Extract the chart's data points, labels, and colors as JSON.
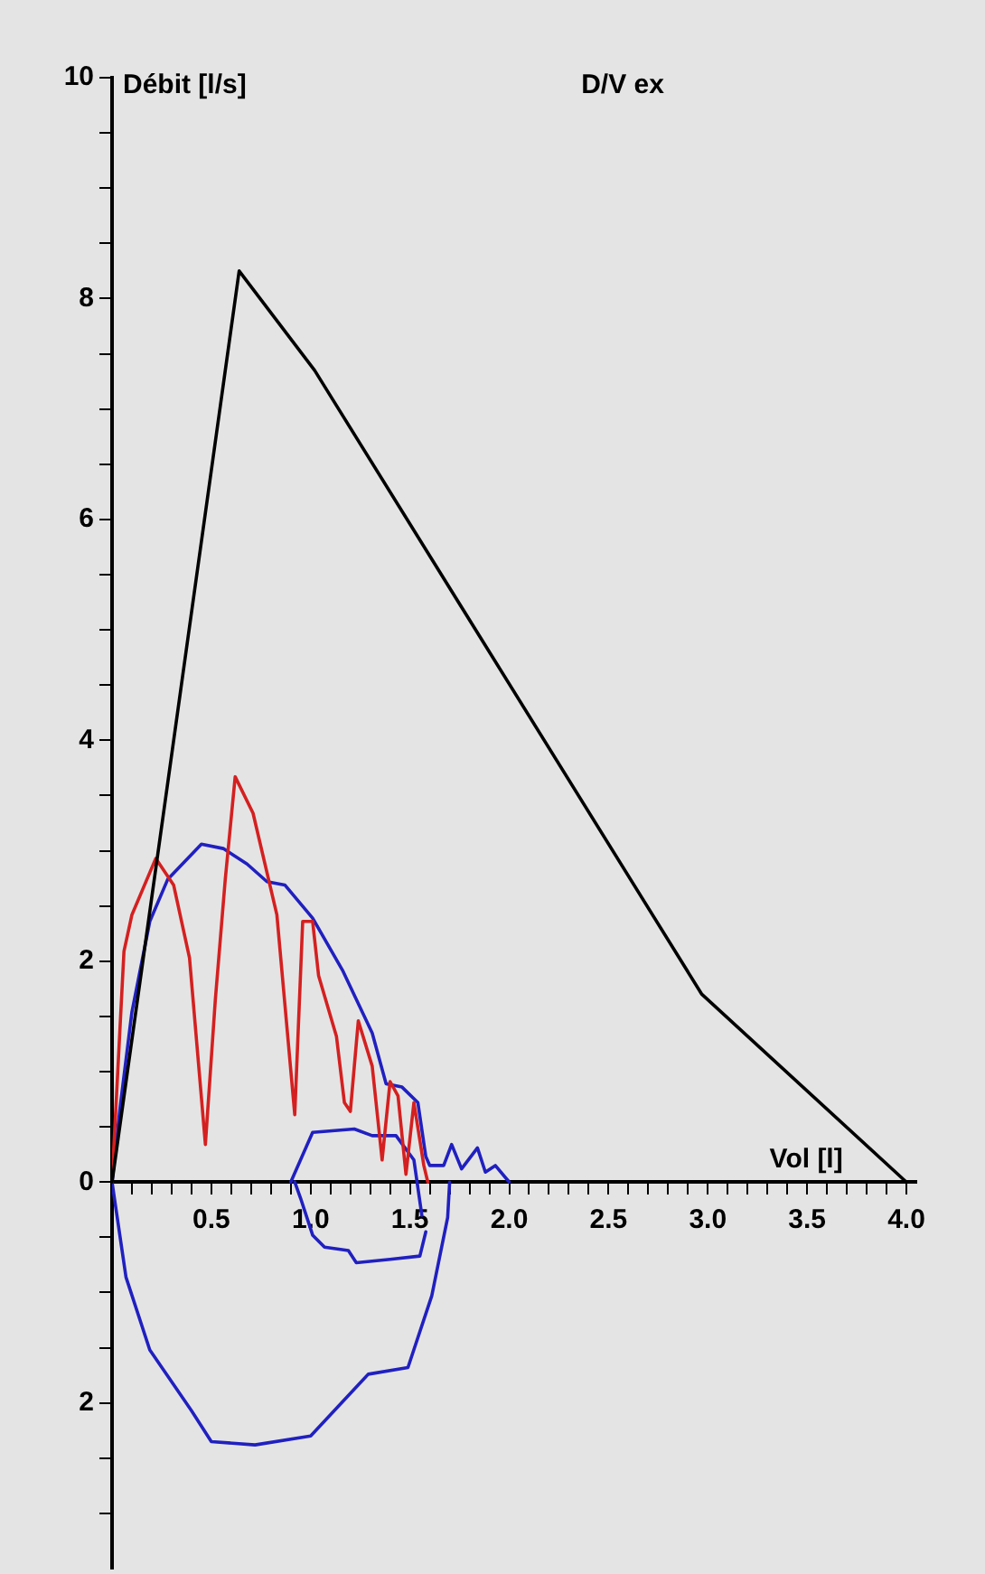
{
  "chart_data": {
    "type": "line",
    "title": "D/V ex",
    "xlabel": "Vol [l]",
    "ylabel": "Débit [l/s]",
    "xlim": [
      0,
      4.05
    ],
    "ylim": [
      -3.5,
      10
    ],
    "xticks": [
      {
        "value": 0.1,
        "label": null
      },
      {
        "value": 0.2,
        "label": null
      },
      {
        "value": 0.3,
        "label": null
      },
      {
        "value": 0.4,
        "label": null
      },
      0.5,
      {
        "value": 0.6,
        "label": null
      },
      {
        "value": 0.7,
        "label": null
      },
      {
        "value": 0.8,
        "label": null
      },
      {
        "value": 0.9,
        "label": null
      },
      {
        "value": 1,
        "label": "1.0"
      },
      {
        "value": 1.1,
        "label": null
      },
      {
        "value": 1.2,
        "label": null
      },
      {
        "value": 1.3,
        "label": null
      },
      {
        "value": 1.4,
        "label": null
      },
      1.5,
      {
        "value": 1.6,
        "label": null
      },
      {
        "value": 1.7,
        "label": null
      },
      {
        "value": 1.8,
        "label": null
      },
      {
        "value": 1.9,
        "label": null
      },
      {
        "value": 2,
        "label": "2.0"
      },
      {
        "value": 2.1,
        "label": null
      },
      {
        "value": 2.2,
        "label": null
      },
      {
        "value": 2.3,
        "label": null
      },
      {
        "value": 2.4,
        "label": null
      },
      2.5,
      {
        "value": 2.6,
        "label": null
      },
      {
        "value": 2.7,
        "label": null
      },
      {
        "value": 2.8,
        "label": null
      },
      {
        "value": 2.9,
        "label": null
      },
      {
        "value": 3,
        "label": "3.0"
      },
      {
        "value": 3.1,
        "label": null
      },
      {
        "value": 3.2,
        "label": null
      },
      {
        "value": 3.3,
        "label": null
      },
      {
        "value": 3.4,
        "label": null
      },
      3.5,
      {
        "value": 3.6,
        "label": null
      },
      {
        "value": 3.7,
        "label": null
      },
      {
        "value": 3.8,
        "label": null
      },
      {
        "value": 3.9,
        "label": null
      },
      {
        "value": 4,
        "label": "4.0"
      }
    ],
    "yticks": [
      {
        "value": -3,
        "label": null
      },
      {
        "value": -2.5,
        "label": null
      },
      {
        "value": -2,
        "label": "2"
      },
      {
        "value": -1.5,
        "label": null
      },
      {
        "value": -1,
        "label": null
      },
      {
        "value": -0.5,
        "label": null
      },
      0,
      {
        "value": 0.5,
        "label": null
      },
      {
        "value": 1,
        "label": null
      },
      {
        "value": 1.5,
        "label": null
      },
      2,
      {
        "value": 2.5,
        "label": null
      },
      {
        "value": 3,
        "label": null
      },
      {
        "value": 3.5,
        "label": null
      },
      4,
      {
        "value": 4.5,
        "label": null
      },
      {
        "value": 5,
        "label": null
      },
      {
        "value": 5.5,
        "label": null
      },
      6,
      {
        "value": 6.5,
        "label": null
      },
      {
        "value": 7,
        "label": null
      },
      {
        "value": 7.5,
        "label": null
      },
      8,
      {
        "value": 8.5,
        "label": null
      },
      {
        "value": 9,
        "label": null
      },
      {
        "value": 9.5,
        "label": null
      },
      10
    ],
    "grid": false,
    "legend": false,
    "marker": "none",
    "line_style": "solid",
    "series": [
      {
        "color": "#000000",
        "x": [
          0,
          0.64,
          1.02,
          2.97,
          4.0
        ],
        "values": [
          0,
          8.25,
          7.35,
          1.7,
          0
        ]
      },
      {
        "color": "#d42020",
        "x": [
          0,
          0.06,
          0.1,
          0.22,
          0.31,
          0.39,
          0.47,
          0.52,
          0.57,
          0.62,
          0.71,
          0.83,
          0.92,
          0.96,
          1.01,
          1.04,
          1.13,
          1.17,
          1.2,
          1.24,
          1.31,
          1.36,
          1.4,
          1.44,
          1.48,
          1.52,
          1.57,
          1.59
        ],
        "values": [
          0,
          2.09,
          2.42,
          2.93,
          2.69,
          2.03,
          0.34,
          1.65,
          2.74,
          3.67,
          3.34,
          2.42,
          0.61,
          2.36,
          2.36,
          1.87,
          1.32,
          0.72,
          0.64,
          1.46,
          1.05,
          0.2,
          0.91,
          0.78,
          0.07,
          0.72,
          0.15,
          0
        ]
      },
      {
        "color": "#2020c0",
        "x": [
          1.7,
          1.69,
          1.61,
          1.49,
          1.29,
          1.0,
          0.72,
          0.5,
          0.4,
          0.19,
          0.07,
          0,
          0.04,
          0.1,
          0.19,
          0.28,
          0.45,
          0.56,
          0.68,
          0.78,
          0.87,
          1.01,
          1.16,
          1.31,
          1.38,
          1.46,
          1.54,
          1.58,
          1.6,
          1.67,
          1.71,
          1.76,
          1.84,
          1.88,
          1.93,
          2.0
        ],
        "values": [
          0,
          -0.32,
          -1.03,
          -1.68,
          -1.74,
          -2.3,
          -2.38,
          -2.35,
          -2.07,
          -1.52,
          -0.86,
          0,
          0.67,
          1.54,
          2.36,
          2.74,
          3.06,
          3.02,
          2.88,
          2.72,
          2.69,
          2.39,
          1.92,
          1.35,
          0.89,
          0.86,
          0.72,
          0.23,
          0.15,
          0.15,
          0.34,
          0.12,
          0.31,
          0.09,
          0.15,
          0
        ]
      },
      {
        "color": "#2020c0",
        "x": [
          0.9,
          1.01,
          1.22,
          1.31,
          1.43,
          1.52,
          1.56
        ],
        "values": [
          0,
          0.45,
          0.48,
          0.42,
          0.42,
          0.2,
          -0.3
        ]
      },
      {
        "color": "#2020c0",
        "x": [
          0.92,
          0.95,
          1.01,
          1.07,
          1.19,
          1.23,
          1.4,
          1.55,
          1.58
        ],
        "values": [
          0,
          -0.15,
          -0.48,
          -0.59,
          -0.62,
          -0.73,
          -0.7,
          -0.67,
          -0.45
        ]
      }
    ]
  }
}
